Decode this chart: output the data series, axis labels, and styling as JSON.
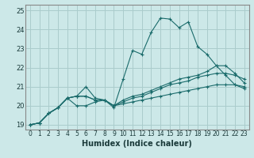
{
  "xlabel": "Humidex (Indice chaleur)",
  "bg_color": "#cce8e8",
  "grid_color": "#aacccc",
  "line_color": "#1a6b6b",
  "xlim": [
    -0.5,
    23.5
  ],
  "ylim": [
    18.75,
    25.3
  ],
  "x_ticks": [
    0,
    1,
    2,
    3,
    4,
    5,
    6,
    7,
    8,
    9,
    10,
    11,
    12,
    13,
    14,
    15,
    16,
    17,
    18,
    19,
    20,
    21,
    22,
    23
  ],
  "y_ticks": [
    19,
    20,
    21,
    22,
    23,
    24,
    25
  ],
  "lines": [
    [
      19.0,
      19.1,
      19.6,
      19.9,
      20.4,
      20.5,
      21.0,
      20.4,
      20.3,
      19.9,
      21.4,
      22.9,
      22.7,
      23.85,
      24.6,
      24.55,
      24.1,
      24.4,
      23.1,
      22.7,
      22.1,
      21.6,
      21.1,
      20.9
    ],
    [
      19.0,
      19.1,
      19.6,
      19.9,
      20.4,
      20.5,
      20.5,
      20.3,
      20.3,
      20.0,
      20.3,
      20.5,
      20.6,
      20.8,
      21.0,
      21.2,
      21.4,
      21.5,
      21.6,
      21.8,
      22.1,
      22.1,
      21.7,
      21.2
    ],
    [
      19.0,
      19.1,
      19.6,
      19.9,
      20.4,
      20.5,
      20.5,
      20.3,
      20.3,
      20.0,
      20.2,
      20.4,
      20.5,
      20.7,
      20.9,
      21.1,
      21.2,
      21.3,
      21.5,
      21.6,
      21.7,
      21.7,
      21.6,
      21.4
    ],
    [
      19.0,
      19.1,
      19.6,
      19.9,
      20.4,
      20.0,
      20.0,
      20.2,
      20.3,
      20.0,
      20.1,
      20.2,
      20.3,
      20.4,
      20.5,
      20.6,
      20.7,
      20.8,
      20.9,
      21.0,
      21.1,
      21.1,
      21.1,
      21.0
    ]
  ]
}
